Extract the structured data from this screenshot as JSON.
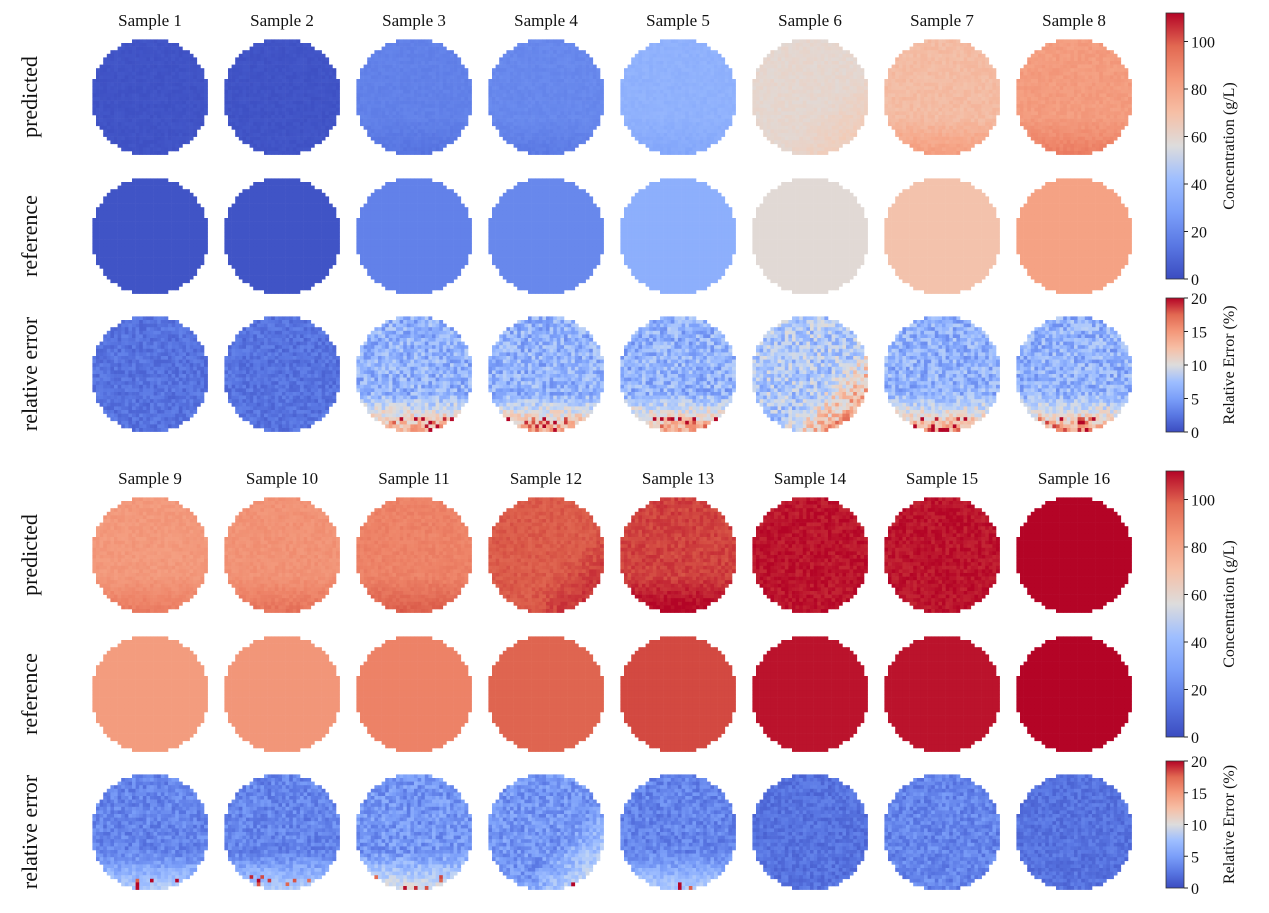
{
  "chart_data": {
    "type": "heatmap",
    "title": "",
    "description": "Grid of circular concentration maps: predicted, reference and relative error for 16 samples",
    "row_labels": [
      "predicted",
      "reference",
      "relative error"
    ],
    "panels": [
      {
        "samples": [
          "Sample 1",
          "Sample 2",
          "Sample 3",
          "Sample 4",
          "Sample 5",
          "Sample 6",
          "Sample 7",
          "Sample 8"
        ],
        "reference_concentration_g_per_L": [
          2,
          2,
          14,
          16,
          28,
          58,
          70,
          80
        ],
        "predicted_mean_concentration_g_per_L": [
          2,
          2,
          14,
          16,
          29,
          60,
          72,
          82
        ],
        "relative_error_mean_pct": [
          2,
          2,
          6,
          6,
          6,
          8,
          6,
          6
        ],
        "error_hotspot": [
          "none",
          "none",
          "bottom",
          "bottom",
          "bottom",
          "bottom-right",
          "bottom",
          "bottom"
        ]
      },
      {
        "samples": [
          "Sample 9",
          "Sample 10",
          "Sample 11",
          "Sample 12",
          "Sample 13",
          "Sample 14",
          "Sample 15",
          "Sample 16"
        ],
        "reference_concentration_g_per_L": [
          82,
          84,
          90,
          98,
          103,
          110,
          110,
          115
        ],
        "predicted_mean_concentration_g_per_L": [
          83,
          85,
          90,
          100,
          104,
          110,
          110,
          115
        ],
        "relative_error_mean_pct": [
          3,
          3,
          4,
          4,
          3,
          2,
          3,
          2
        ],
        "error_hotspot": [
          "bottom",
          "bottom",
          "bottom",
          "bottom-right",
          "bottom",
          "none",
          "none",
          "none"
        ]
      }
    ],
    "colorbars": [
      {
        "label": "Concentration (g/L)",
        "ticks": [
          0,
          20,
          40,
          60,
          80,
          100
        ],
        "range": [
          0,
          112
        ],
        "colormap": "coolwarm"
      },
      {
        "label": "Relative Error (%)",
        "ticks": [
          0,
          5,
          10,
          15,
          20
        ],
        "range": [
          0,
          20
        ],
        "colormap": "coolwarm"
      }
    ]
  }
}
